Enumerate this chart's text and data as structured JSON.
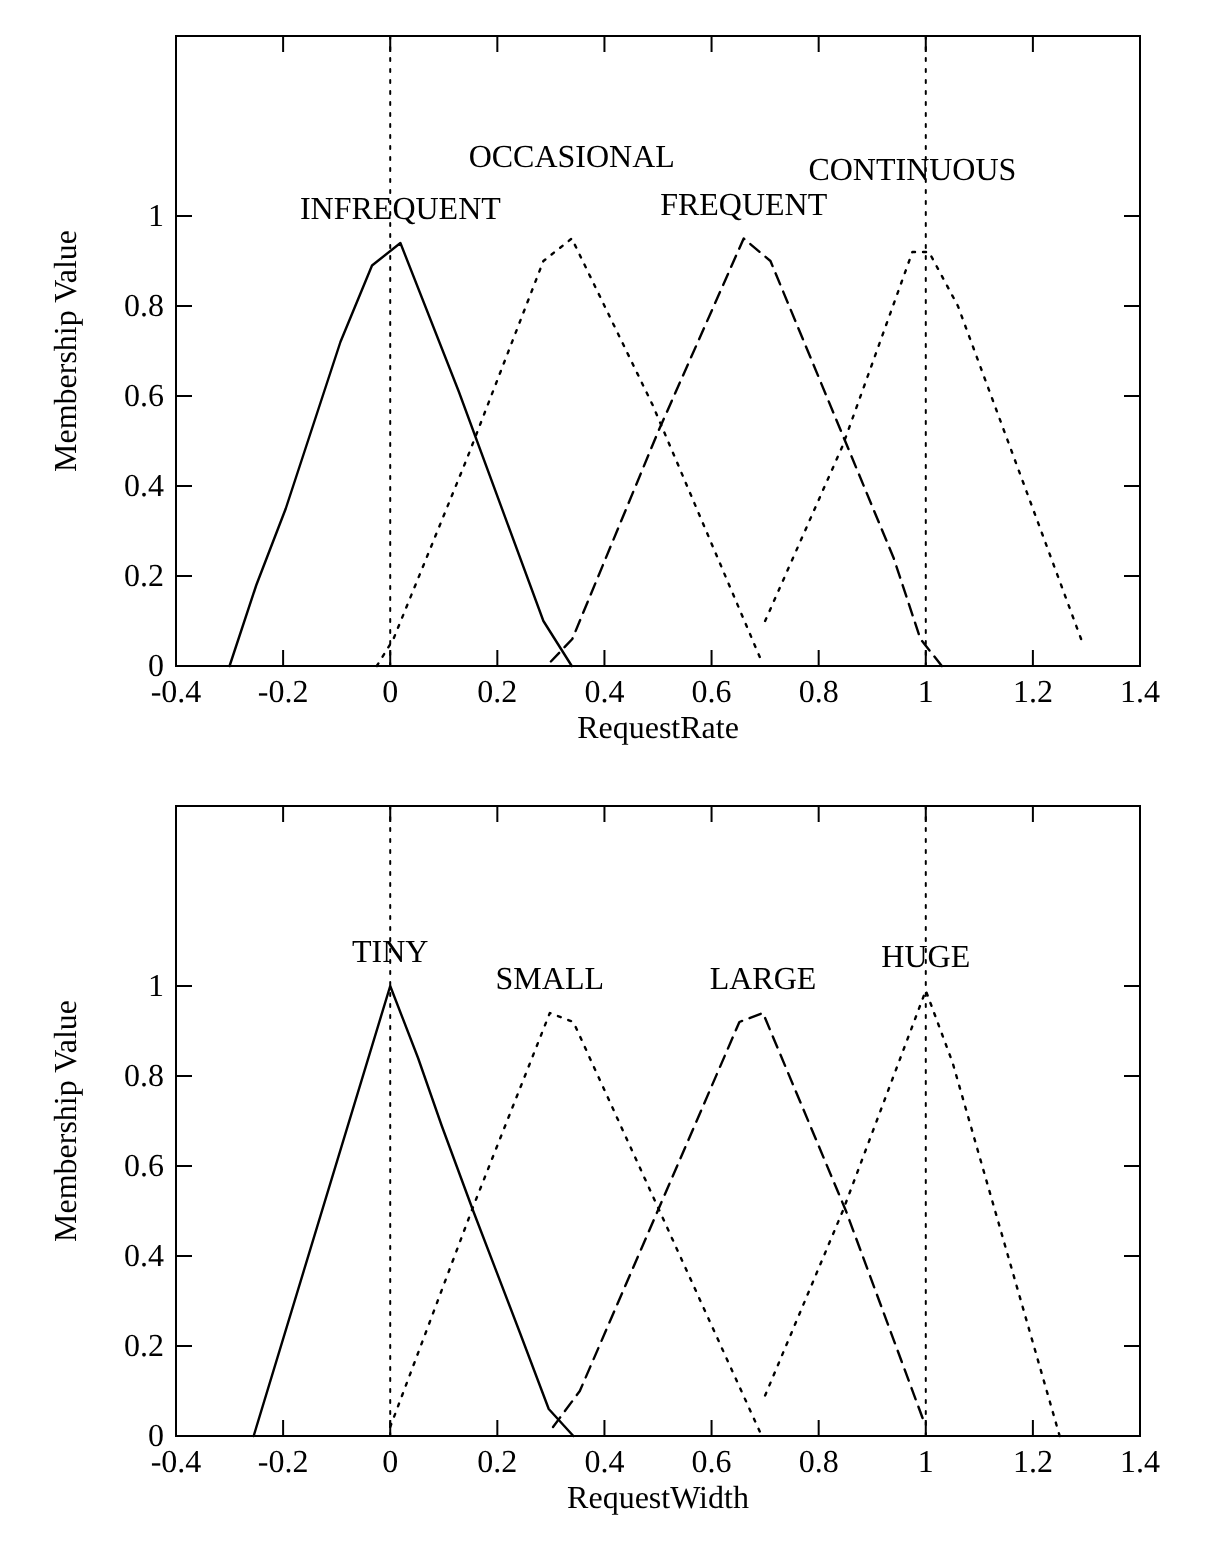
{
  "chart_data": [
    {
      "type": "line",
      "xlabel": "RequestRate",
      "ylabel": "Membership Value",
      "xlim": [
        -0.4,
        1.4
      ],
      "ylim": [
        0,
        1.4
      ],
      "xticks": [
        -0.4,
        -0.2,
        0,
        0.2,
        0.4,
        0.6,
        0.8,
        1,
        1.2,
        1.4
      ],
      "yticks": [
        0,
        0.2,
        0.4,
        0.6,
        0.8,
        1
      ],
      "grid": false,
      "marker": "none",
      "ref_lines": [
        {
          "axis": "x",
          "value": 0,
          "line_style": "dotted"
        },
        {
          "axis": "x",
          "value": 1,
          "line_style": "dotted"
        }
      ],
      "series": [
        {
          "name": "INFREQUENT",
          "color": "#000000",
          "line_style": "solid",
          "x": [
            -0.3,
            -0.25,
            -0.195,
            -0.093,
            -0.034,
            0.019,
            0.128,
            0.286,
            0.339
          ],
          "values": [
            0,
            0.18,
            0.35,
            0.72,
            0.89,
            0.94,
            0.61,
            0.1,
            0
          ]
        },
        {
          "name": "OCCASIONAL",
          "color": "#000000",
          "line_style": "dotted",
          "x": [
            -0.025,
            0.006,
            0.143,
            0.286,
            0.339,
            0.49,
            0.69
          ],
          "values": [
            0,
            0.06,
            0.46,
            0.9,
            0.95,
            0.58,
            0.02
          ]
        },
        {
          "name": "FREQUENT",
          "color": "#000000",
          "line_style": "dashed",
          "x": [
            0.3,
            0.34,
            0.5,
            0.66,
            0.71,
            0.94,
            0.99,
            1.03
          ],
          "values": [
            0.01,
            0.06,
            0.52,
            0.95,
            0.9,
            0.24,
            0.06,
            0
          ]
        },
        {
          "name": "CONTINUOUS",
          "color": "#000000",
          "line_style": "dotted",
          "x": [
            0.7,
            0.845,
            0.975,
            1.006,
            1.06,
            1.29
          ],
          "values": [
            0.1,
            0.49,
            0.92,
            0.92,
            0.8,
            0.06
          ]
        }
      ]
    },
    {
      "type": "line",
      "xlabel": "RequestWidth",
      "ylabel": "Membership Value",
      "xlim": [
        -0.4,
        1.4
      ],
      "ylim": [
        0,
        1.4
      ],
      "xticks": [
        -0.4,
        -0.2,
        0,
        0.2,
        0.4,
        0.6,
        0.8,
        1,
        1.2,
        1.4
      ],
      "yticks": [
        0,
        0.2,
        0.4,
        0.6,
        0.8,
        1
      ],
      "grid": false,
      "marker": "none",
      "ref_lines": [
        {
          "axis": "x",
          "value": 0,
          "line_style": "dotted"
        },
        {
          "axis": "x",
          "value": 1,
          "line_style": "dotted"
        }
      ],
      "series": [
        {
          "name": "TINY",
          "color": "#000000",
          "line_style": "solid",
          "x": [
            -0.255,
            0,
            0.052,
            0.096,
            0.155,
            0.242,
            0.296,
            0.342
          ],
          "values": [
            0,
            1,
            0.84,
            0.69,
            0.5,
            0.23,
            0.06,
            0
          ]
        },
        {
          "name": "SMALL",
          "color": "#000000",
          "line_style": "dotted",
          "x": [
            0,
            0.155,
            0.298,
            0.342,
            0.503,
            0.69
          ],
          "values": [
            0.02,
            0.51,
            0.94,
            0.92,
            0.5,
            0.01
          ]
        },
        {
          "name": "LARGE",
          "color": "#000000",
          "line_style": "dashed",
          "x": [
            0.304,
            0.354,
            0.503,
            0.652,
            0.696,
            0.851,
            0.994
          ],
          "values": [
            0.02,
            0.1,
            0.51,
            0.92,
            0.94,
            0.5,
            0.04
          ]
        },
        {
          "name": "HUGE",
          "color": "#000000",
          "line_style": "dotted",
          "x": [
            0.7,
            0.845,
            1,
            1.05,
            1.25
          ],
          "values": [
            0.09,
            0.5,
            0.99,
            0.83,
            0
          ]
        }
      ]
    }
  ]
}
